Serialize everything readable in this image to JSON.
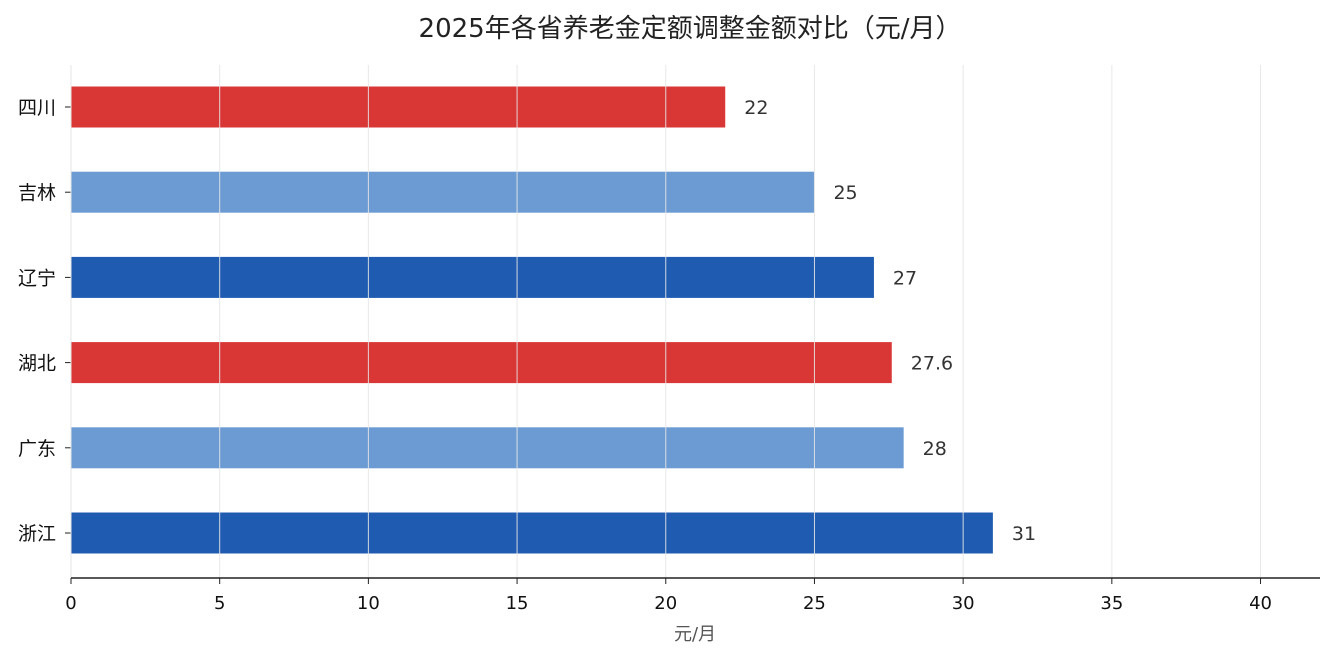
{
  "chart_data": {
    "type": "bar",
    "orientation": "horizontal",
    "title": "2025年各省养老金定额调整金额对比（元/月）",
    "xlabel": "元/月",
    "ylabel": "",
    "categories": [
      "四川",
      "吉林",
      "辽宁",
      "湖北",
      "广东",
      "浙江"
    ],
    "values": [
      22,
      25,
      27,
      27.6,
      28,
      31
    ],
    "value_labels": [
      "22",
      "25",
      "27",
      "27.6",
      "28",
      "31"
    ],
    "bar_colors": [
      "#d93636",
      "#6b9bd2",
      "#1f5bb0",
      "#d93636",
      "#6b9bd2",
      "#1f5bb0"
    ],
    "xlim": [
      0,
      42
    ],
    "xticks": [
      0,
      5,
      10,
      15,
      20,
      25,
      30,
      35,
      40
    ],
    "xtick_labels": [
      "0",
      "5",
      "10",
      "15",
      "20",
      "25",
      "30",
      "35",
      "40"
    ],
    "grid": "vertical"
  }
}
